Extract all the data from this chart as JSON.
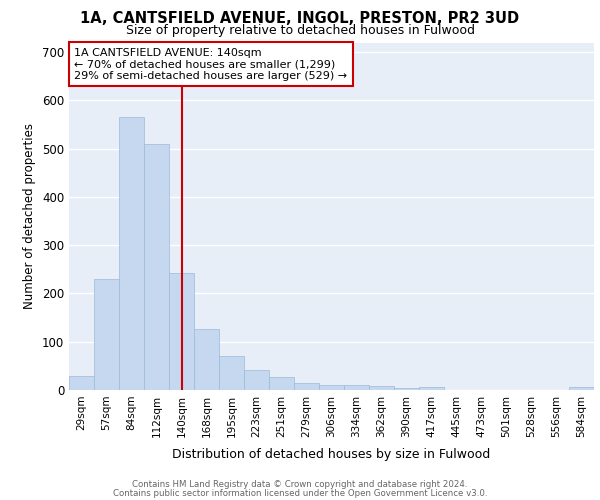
{
  "title1": "1A, CANTSFIELD AVENUE, INGOL, PRESTON, PR2 3UD",
  "title2": "Size of property relative to detached houses in Fulwood",
  "xlabel": "Distribution of detached houses by size in Fulwood",
  "ylabel": "Number of detached properties",
  "bin_labels": [
    "29sqm",
    "57sqm",
    "84sqm",
    "112sqm",
    "140sqm",
    "168sqm",
    "195sqm",
    "223sqm",
    "251sqm",
    "279sqm",
    "306sqm",
    "334sqm",
    "362sqm",
    "390sqm",
    "417sqm",
    "445sqm",
    "473sqm",
    "501sqm",
    "528sqm",
    "556sqm",
    "584sqm"
  ],
  "bar_values": [
    28,
    230,
    565,
    510,
    242,
    126,
    70,
    42,
    26,
    15,
    11,
    11,
    8,
    5,
    7,
    0,
    0,
    0,
    0,
    0,
    6
  ],
  "property_label": "1A CANTSFIELD AVENUE: 140sqm",
  "annotation_line1": "← 70% of detached houses are smaller (1,299)",
  "annotation_line2": "29% of semi-detached houses are larger (529) →",
  "vline_bin_index": 4,
  "bar_color": "#c5d8ef",
  "bar_edge_color": "#9bbad8",
  "vline_color": "#cc0000",
  "annotation_box_edge_color": "#cc0000",
  "background_color": "#e8eef8",
  "grid_color": "#ffffff",
  "footer_line1": "Contains HM Land Registry data © Crown copyright and database right 2024.",
  "footer_line2": "Contains public sector information licensed under the Open Government Licence v3.0.",
  "ylim": [
    0,
    720
  ],
  "yticks": [
    0,
    100,
    200,
    300,
    400,
    500,
    600,
    700
  ]
}
